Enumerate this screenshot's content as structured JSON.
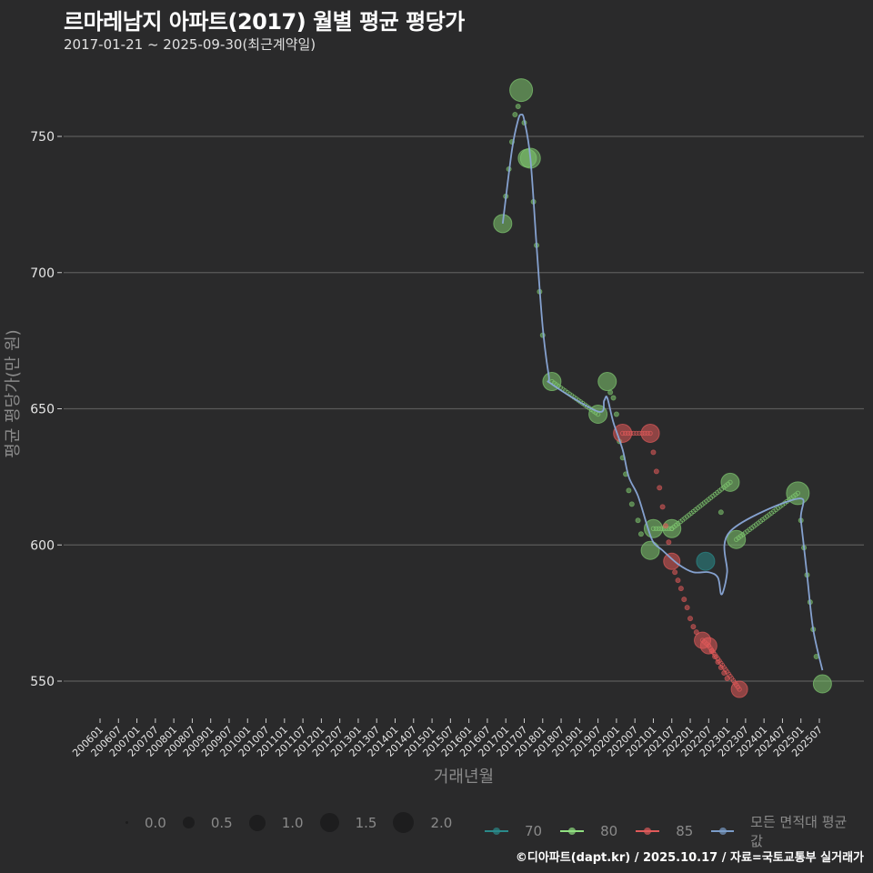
{
  "header": {
    "title": "르마레남지 아파트(2017) 월별 평균 평당가",
    "subtitle": "2017-01-21 ~ 2025-09-30(최근계약일)"
  },
  "axes": {
    "ylabel": "평균 평당가(만 원)",
    "xlabel": "거래년월"
  },
  "legend": {
    "size": [
      {
        "label": "0.0",
        "d": 3
      },
      {
        "label": "0.5",
        "d": 13
      },
      {
        "label": "1.0",
        "d": 18
      },
      {
        "label": "1.5",
        "d": 21
      },
      {
        "label": "2.0",
        "d": 23
      }
    ],
    "series": [
      {
        "label": "70",
        "color": "#2a8a8a"
      },
      {
        "label": "80",
        "color": "#90e080"
      },
      {
        "label": "85",
        "color": "#e05a5a"
      },
      {
        "label": "모든 면적대 평균값",
        "color": "#7a9cc8"
      }
    ]
  },
  "footer": "©디아파트(dapt.kr) / 2025.10.17 / 자료=국토교통부 실거래가",
  "colors": {
    "background": "#2a2a2b",
    "grid": "#5a5a5a",
    "s70": "#2a8a8a",
    "s80": "#7fc870",
    "s85": "#e05a5a",
    "avg": "#8aa8d8"
  },
  "chart_data": {
    "type": "scatter",
    "title": "르마레남지 아파트(2017) 월별 평균 평당가",
    "subtitle": "2017-01-21 ~ 2025-09-30(최근계약일)",
    "xlabel": "거래년월",
    "ylabel": "평균 평당가(만 원)",
    "ylim": [
      535,
      778
    ],
    "yticks": [
      550,
      600,
      650,
      700,
      750
    ],
    "xticks": [
      "200601",
      "200607",
      "200701",
      "200707",
      "200801",
      "200807",
      "200901",
      "200907",
      "201001",
      "201007",
      "201101",
      "201107",
      "201201",
      "201207",
      "201301",
      "201307",
      "201401",
      "201407",
      "201501",
      "201507",
      "201601",
      "201607",
      "201701",
      "201707",
      "201801",
      "201807",
      "201901",
      "201907",
      "202001",
      "202007",
      "202101",
      "202107",
      "202201",
      "202207",
      "202301",
      "202307",
      "202401",
      "202407",
      "202501",
      "202507"
    ],
    "grid": true,
    "legend_position": "bottom",
    "series": [
      {
        "name": "70",
        "points": [
          {
            "ym": "202206",
            "v": 594,
            "size": 1.0
          }
        ],
        "interpolated": []
      },
      {
        "name": "80",
        "points": [
          {
            "ym": "201612",
            "v": 718,
            "size": 1.0
          },
          {
            "ym": "201706",
            "v": 767,
            "size": 1.5
          },
          {
            "ym": "201708",
            "v": 742,
            "size": 1.0
          },
          {
            "ym": "201709",
            "v": 742,
            "size": 1.2
          },
          {
            "ym": "201804",
            "v": 660,
            "size": 1.0
          },
          {
            "ym": "201907",
            "v": 648,
            "size": 1.0
          },
          {
            "ym": "201910",
            "v": 660,
            "size": 1.0
          },
          {
            "ym": "202012",
            "v": 598,
            "size": 1.0
          },
          {
            "ym": "202101",
            "v": 606,
            "size": 1.0
          },
          {
            "ym": "202107",
            "v": 606,
            "size": 1.0
          },
          {
            "ym": "202302",
            "v": 623,
            "size": 1.0
          },
          {
            "ym": "202304",
            "v": 602,
            "size": 1.0
          },
          {
            "ym": "202412",
            "v": 619,
            "size": 1.5
          },
          {
            "ym": "202508",
            "v": 549,
            "size": 1.0
          }
        ],
        "interpolated": [
          {
            "ym": "201701",
            "v": 728
          },
          {
            "ym": "201702",
            "v": 738
          },
          {
            "ym": "201703",
            "v": 748
          },
          {
            "ym": "201704",
            "v": 758
          },
          {
            "ym": "201705",
            "v": 761
          },
          {
            "ym": "201707",
            "v": 755
          },
          {
            "ym": "201710",
            "v": 726
          },
          {
            "ym": "201711",
            "v": 710
          },
          {
            "ym": "201712",
            "v": 693
          },
          {
            "ym": "201801",
            "v": 677
          },
          {
            "ym": "201911",
            "v": 656
          },
          {
            "ym": "201912",
            "v": 654
          },
          {
            "ym": "202001",
            "v": 648
          },
          {
            "ym": "202002",
            "v": 638
          },
          {
            "ym": "202003",
            "v": 632
          },
          {
            "ym": "202004",
            "v": 626
          },
          {
            "ym": "202005",
            "v": 620
          },
          {
            "ym": "202006",
            "v": 615
          },
          {
            "ym": "202008",
            "v": 609
          },
          {
            "ym": "202009",
            "v": 604
          },
          {
            "ym": "202211",
            "v": 612
          },
          {
            "ym": "202501",
            "v": 609
          },
          {
            "ym": "202502",
            "v": 599
          },
          {
            "ym": "202503",
            "v": 589
          },
          {
            "ym": "202504",
            "v": 579
          },
          {
            "ym": "202505",
            "v": 569
          },
          {
            "ym": "202506",
            "v": 559
          }
        ]
      },
      {
        "name": "85",
        "points": [
          {
            "ym": "202003",
            "v": 641,
            "size": 1.0
          },
          {
            "ym": "202012",
            "v": 641,
            "size": 1.0
          },
          {
            "ym": "202107",
            "v": 594,
            "size": 0.8
          },
          {
            "ym": "202205",
            "v": 565,
            "size": 0.8
          },
          {
            "ym": "202207",
            "v": 563,
            "size": 0.8
          },
          {
            "ym": "202305",
            "v": 547,
            "size": 0.8
          }
        ],
        "interpolated": [
          {
            "ym": "202101",
            "v": 634
          },
          {
            "ym": "202102",
            "v": 627
          },
          {
            "ym": "202103",
            "v": 621
          },
          {
            "ym": "202104",
            "v": 614
          },
          {
            "ym": "202105",
            "v": 607
          },
          {
            "ym": "202106",
            "v": 601
          },
          {
            "ym": "202108",
            "v": 590
          },
          {
            "ym": "202109",
            "v": 587
          },
          {
            "ym": "202110",
            "v": 584
          },
          {
            "ym": "202111",
            "v": 580
          },
          {
            "ym": "202112",
            "v": 577
          },
          {
            "ym": "202201",
            "v": 573
          },
          {
            "ym": "202202",
            "v": 570
          },
          {
            "ym": "202203",
            "v": 568
          },
          {
            "ym": "202208",
            "v": 561
          },
          {
            "ym": "202209",
            "v": 559
          },
          {
            "ym": "202210",
            "v": 557
          },
          {
            "ym": "202211",
            "v": 555
          },
          {
            "ym": "202212",
            "v": 553
          },
          {
            "ym": "202301",
            "v": 551
          }
        ]
      }
    ],
    "average_line": {
      "name": "모든 면적대 평균값",
      "points": [
        {
          "ym": "201612",
          "v": 718
        },
        {
          "ym": "201703",
          "v": 745
        },
        {
          "ym": "201705",
          "v": 756
        },
        {
          "ym": "201706",
          "v": 758
        },
        {
          "ym": "201707",
          "v": 756
        },
        {
          "ym": "201709",
          "v": 742
        },
        {
          "ym": "201711",
          "v": 710
        },
        {
          "ym": "201801",
          "v": 680
        },
        {
          "ym": "201803",
          "v": 662
        },
        {
          "ym": "201804",
          "v": 659
        },
        {
          "ym": "201907",
          "v": 649
        },
        {
          "ym": "201909",
          "v": 653
        },
        {
          "ym": "201910",
          "v": 654
        },
        {
          "ym": "201912",
          "v": 645
        },
        {
          "ym": "202003",
          "v": 635
        },
        {
          "ym": "202005",
          "v": 625
        },
        {
          "ym": "202008",
          "v": 618
        },
        {
          "ym": "202011",
          "v": 607
        },
        {
          "ym": "202101",
          "v": 601
        },
        {
          "ym": "202104",
          "v": 598
        },
        {
          "ym": "202109",
          "v": 593
        },
        {
          "ym": "202202",
          "v": 590
        },
        {
          "ym": "202207",
          "v": 590
        },
        {
          "ym": "202210",
          "v": 588
        },
        {
          "ym": "202211",
          "v": 582
        },
        {
          "ym": "202212",
          "v": 584
        },
        {
          "ym": "202301",
          "v": 590
        },
        {
          "ym": "202302",
          "v": 605
        },
        {
          "ym": "202412",
          "v": 617
        },
        {
          "ym": "202501",
          "v": 609
        },
        {
          "ym": "202503",
          "v": 589
        },
        {
          "ym": "202505",
          "v": 569
        },
        {
          "ym": "202508",
          "v": 554
        }
      ]
    }
  }
}
